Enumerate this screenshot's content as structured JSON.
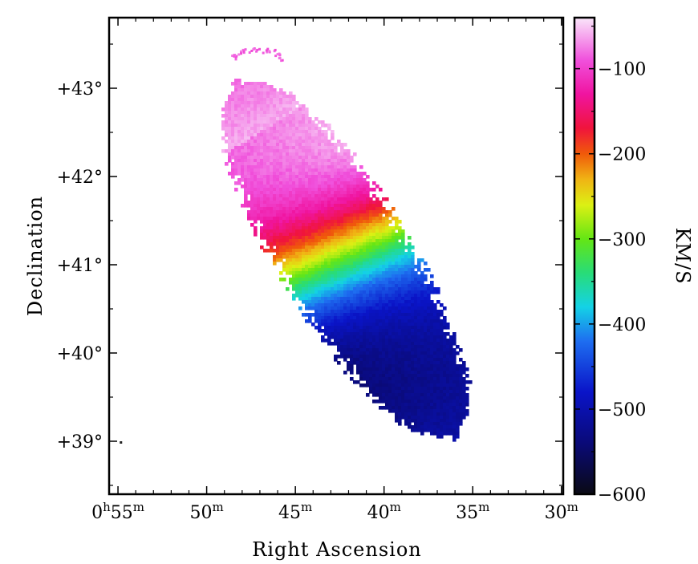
{
  "chart_data": {
    "type": "heatmap",
    "title": "",
    "xlabel": "Right Ascension",
    "ylabel": "Declination",
    "x_axis": {
      "ticks": [
        {
          "h": "0",
          "value": "55",
          "unit": "m",
          "min": 55
        },
        {
          "value": "50",
          "unit": "m",
          "min": 50
        },
        {
          "value": "45",
          "unit": "m",
          "min": 45
        },
        {
          "value": "40",
          "unit": "m",
          "min": 40
        },
        {
          "value": "35",
          "unit": "m",
          "min": 35
        },
        {
          "value": "30",
          "unit": "m",
          "min": 30
        }
      ],
      "hour_prefix": "0",
      "hour_unit": "h",
      "range_minutes": [
        55.5,
        29.9
      ],
      "inverted": true
    },
    "y_axis": {
      "ticks": [
        {
          "label": "+39°",
          "value": 39
        },
        {
          "label": "+40°",
          "value": 40
        },
        {
          "label": "+41°",
          "value": 41
        },
        {
          "label": "+42°",
          "value": 42
        },
        {
          "label": "+43°",
          "value": 43
        }
      ],
      "range_deg": [
        38.4,
        43.8
      ]
    },
    "colorbar": {
      "label": "KM/S",
      "ticks": [
        {
          "label": "−100",
          "value": -100
        },
        {
          "label": "−200",
          "value": -200
        },
        {
          "label": "−300",
          "value": -300
        },
        {
          "label": "−400",
          "value": -400
        },
        {
          "label": "−500",
          "value": -500
        },
        {
          "label": "−600",
          "value": -600
        }
      ],
      "range": [
        -600,
        -40
      ],
      "stops": [
        {
          "v": -600,
          "c": "#0a0a14"
        },
        {
          "v": -540,
          "c": "#0a0a78"
        },
        {
          "v": -480,
          "c": "#0a14c8"
        },
        {
          "v": -420,
          "c": "#1e6ef0"
        },
        {
          "v": -380,
          "c": "#14d2e6"
        },
        {
          "v": -340,
          "c": "#28dc78"
        },
        {
          "v": -300,
          "c": "#64e614"
        },
        {
          "v": -260,
          "c": "#dcf014"
        },
        {
          "v": -230,
          "c": "#f0b414"
        },
        {
          "v": -200,
          "c": "#f05a0a"
        },
        {
          "v": -170,
          "c": "#f0143c"
        },
        {
          "v": -130,
          "c": "#f014a0"
        },
        {
          "v": -90,
          "c": "#f050dc"
        },
        {
          "v": -40,
          "c": "#fae6fa"
        }
      ]
    },
    "velocity_field": {
      "description_values_kms": {
        "northeast_tip": -60,
        "northeast_arm": -150,
        "center": -300,
        "southwest_arm": -510,
        "southwest_tip": -480
      }
    },
    "grid": false,
    "legend": "colorbar-right"
  }
}
